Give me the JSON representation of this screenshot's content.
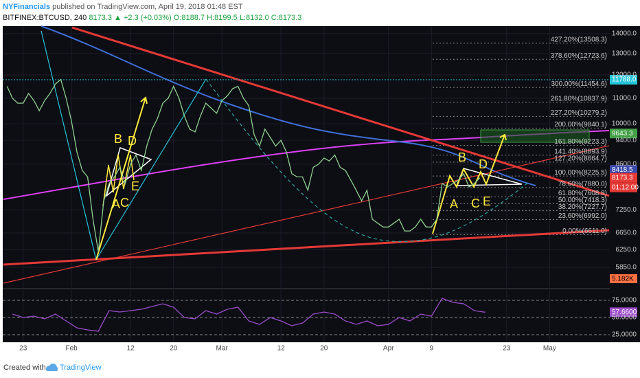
{
  "header": {
    "author": "NYFinancials",
    "published": "published on TradingView.com, April 19, 2018 01:48 EST"
  },
  "symbol_line": {
    "symbol": "BITFINEX:BTCUSD, 240",
    "last": "8173.3",
    "change": "▲ +2.3 (+0.03%)",
    "open": "O:8188.7",
    "high": "H:8199.5",
    "low": "L:8132.0",
    "close": "C:8173.3"
  },
  "chart_data": [
    {
      "type": "line",
      "log_scale": true,
      "grid": true,
      "color": "#8fd18f",
      "x": [
        -3,
        -2,
        -1,
        0,
        1,
        2,
        3,
        4,
        5,
        6,
        7,
        8,
        9,
        10,
        11,
        12,
        13,
        14,
        15,
        16,
        17,
        18,
        19,
        20,
        21,
        22,
        23,
        24,
        25,
        26,
        27,
        28,
        29,
        30,
        31,
        32,
        33,
        34,
        35,
        36,
        37,
        38,
        39,
        40,
        41,
        42,
        43,
        44,
        45,
        46,
        47,
        48,
        49,
        50,
        51,
        52,
        53,
        54,
        55,
        56,
        57,
        58,
        59,
        60,
        61,
        62,
        63,
        64,
        65,
        66,
        67,
        68,
        69,
        70,
        71,
        72,
        73,
        74,
        75,
        76,
        77,
        78,
        79,
        80,
        81,
        82,
        83,
        84,
        85
      ],
      "values": [
        11500,
        11000,
        10800,
        10800,
        11200,
        10900,
        10500,
        10900,
        11200,
        11600,
        11800,
        11000,
        10100,
        9000,
        8400,
        8200,
        7000,
        6200,
        7500,
        8000,
        8200,
        8500,
        8000,
        8600,
        8900,
        8400,
        9200,
        9800,
        10200,
        10800,
        11000,
        11500,
        11000,
        10300,
        9800,
        9700,
        10300,
        10800,
        10600,
        10400,
        10900,
        11100,
        11400,
        11500,
        11000,
        10700,
        9600,
        9200,
        9800,
        9500,
        9200,
        9400,
        9000,
        8300,
        8200,
        8200,
        7800,
        8500,
        8600,
        8800,
        8700,
        8900,
        8500,
        8400,
        8100,
        7800,
        7500,
        7800,
        7000,
        6900,
        6800,
        6800,
        6900,
        7000,
        6700,
        6700,
        6800,
        7000,
        6800,
        6800,
        7000,
        8000,
        7900,
        8000,
        8100,
        8300,
        7900,
        8000,
        8173.3
      ],
      "xlim": [
        -3.8,
        109.2
      ],
      "xticks": [
        {
          "value": 0,
          "label": "23"
        },
        {
          "value": 9,
          "label": "Feb"
        },
        {
          "value": 20,
          "label": "12"
        },
        {
          "value": 28,
          "label": "20"
        },
        {
          "value": 37,
          "label": "Mar"
        },
        {
          "value": 48,
          "label": "12"
        },
        {
          "value": 56,
          "label": "20"
        },
        {
          "value": 68,
          "label": "Apr"
        },
        {
          "value": 76,
          "label": "9"
        },
        {
          "value": 90,
          "label": "23"
        },
        {
          "value": 98,
          "label": "May"
        }
      ],
      "ylim": [
        5430,
        14400
      ],
      "yticks": [
        {
          "value": 14000,
          "label": "14000.0"
        },
        {
          "value": 13000,
          "label": "13000.0"
        },
        {
          "value": 12000,
          "label": "12000.0"
        },
        {
          "value": 11000,
          "label": "11000.0"
        },
        {
          "value": 10000,
          "label": "10000.0"
        },
        {
          "value": 9400,
          "label": "9400.0"
        },
        {
          "value": 8600,
          "label": "8600.0"
        },
        {
          "value": 7250,
          "label": "7250.0"
        },
        {
          "value": 6650,
          "label": "6650.0"
        },
        {
          "value": 6250,
          "label": "6250.0"
        },
        {
          "value": 5850,
          "label": "5850.0"
        }
      ],
      "fib_levels": [
        {
          "value": 13508.3,
          "label": "427.20%(13508.3)"
        },
        {
          "value": 12723.6,
          "label": "378.60%(12723.6)"
        },
        {
          "value": 11454.6,
          "label": "300.00%(11454.6)"
        },
        {
          "value": 10837.9,
          "label": "261.80%(10837.9)"
        },
        {
          "value": 10279.2,
          "label": "227.20%(10279.2)"
        },
        {
          "value": 9840.1,
          "label": "200.00%(9840.1)"
        },
        {
          "value": 9223.3,
          "label": "161.80%(9223.3)"
        },
        {
          "value": 8893.9,
          "label": "141.40%(8893.9)"
        },
        {
          "value": 8664.7,
          "label": "127.20%(8664.7)"
        },
        {
          "value": 8225.5,
          "label": "100.00%(8225.5)"
        },
        {
          "value": 7880.0,
          "label": "78.60%(7880.0)"
        },
        {
          "value": 7608.8,
          "label": "61.80%(7608.8)"
        },
        {
          "value": 7418.3,
          "label": "50.00%(7418.3)"
        },
        {
          "value": 7227.7,
          "label": "38.20%(7227.7)"
        },
        {
          "value": 6992.0,
          "label": "23.60%(6992.0)"
        },
        {
          "value": 6611.0,
          "label": "0.00%(6611.0)"
        }
      ],
      "price_tags": [
        {
          "value": 11788,
          "label": "11788.0",
          "color": "#26c6da"
        },
        {
          "value": 9643.3,
          "label": "9643.3",
          "color": "#43a047"
        },
        {
          "value": 8418.5,
          "label": "8418.5",
          "color": "#3949ab"
        },
        {
          "value": 8173.3,
          "label": "8173.3",
          "color": "#e53935"
        }
      ],
      "countdown": "01:12:00",
      "volume_tag": "5.182K",
      "annotations": [
        "A",
        "B",
        "C",
        "D",
        "E",
        "A",
        "B",
        "C",
        "D",
        "E"
      ]
    },
    {
      "type": "line",
      "color": "#9c4dcc",
      "x": [
        -2,
        0,
        2,
        4,
        6,
        8,
        10,
        12,
        14,
        16,
        18,
        20,
        22,
        24,
        26,
        28,
        30,
        32,
        34,
        36,
        38,
        40,
        42,
        44,
        46,
        48,
        50,
        52,
        54,
        56,
        58,
        60,
        62,
        64,
        66,
        68,
        70,
        72,
        74,
        76,
        78,
        80,
        82,
        84,
        86
      ],
      "values": [
        55,
        50,
        52,
        48,
        55,
        45,
        35,
        32,
        30,
        60,
        58,
        60,
        62,
        66,
        70,
        65,
        50,
        48,
        60,
        55,
        62,
        65,
        45,
        40,
        50,
        45,
        38,
        42,
        55,
        58,
        55,
        45,
        40,
        45,
        38,
        40,
        50,
        45,
        55,
        52,
        78,
        72,
        70,
        60,
        57.66
      ],
      "value_labels": [
        null,
        null,
        null,
        null,
        null,
        null,
        null,
        null,
        null,
        null,
        null,
        null,
        null,
        null,
        null,
        null,
        null,
        null,
        null,
        null,
        null,
        null,
        null,
        null,
        null,
        null,
        null,
        null,
        null,
        null,
        null,
        null,
        null,
        null,
        null,
        null,
        null,
        null,
        null,
        null,
        null,
        null,
        null,
        null,
        "57.6600"
      ],
      "ylim": [
        15,
        90
      ],
      "yticks": [
        {
          "value": 75,
          "label": "75.0000"
        },
        {
          "value": 50,
          "label": "50.0000"
        },
        {
          "value": 25,
          "label": "25.0000"
        }
      ]
    }
  ],
  "footer": {
    "created": "Created with",
    "brand": "TradingView"
  }
}
